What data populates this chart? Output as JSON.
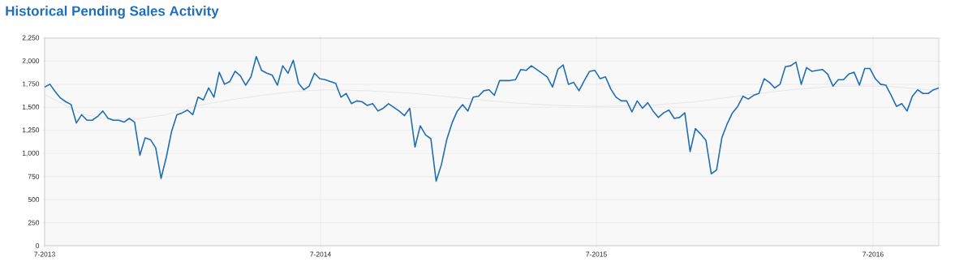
{
  "chart_data": {
    "type": "line",
    "title": "Historical Pending Sales Activity",
    "xlim": [
      "2013-07-01",
      "2016-09-26"
    ],
    "xticks": [
      {
        "value": "2013-07-01",
        "label": "7-2013"
      },
      {
        "value": "2014-07-01",
        "label": "7-2014"
      },
      {
        "value": "2015-07-01",
        "label": "7-2015"
      },
      {
        "value": "2016-07-01",
        "label": "7-2016"
      }
    ],
    "ylim": [
      0,
      2250
    ],
    "yticks": [
      {
        "value": 0,
        "label": "0"
      },
      {
        "value": 250,
        "label": "250"
      },
      {
        "value": 500,
        "label": "500"
      },
      {
        "value": 750,
        "label": "750"
      },
      {
        "value": 1000,
        "label": "1,000"
      },
      {
        "value": 1250,
        "label": "1,250"
      },
      {
        "value": 1500,
        "label": "1,500"
      },
      {
        "value": 1750,
        "label": "1,750"
      },
      {
        "value": 2000,
        "label": "2,000"
      },
      {
        "value": 2250,
        "label": "2,250"
      }
    ],
    "grid": true,
    "series": [
      {
        "color": "#d4d4d4",
        "x": [
          "2013-07-01",
          "2013-08-19",
          "2013-09-16",
          "2013-10-28",
          "2013-12-09",
          "2014-01-20",
          "2014-03-03",
          "2014-04-14",
          "2014-05-26",
          "2014-07-07",
          "2014-09-01",
          "2014-11-03",
          "2015-01-05",
          "2015-03-09",
          "2015-05-11",
          "2015-07-06",
          "2015-09-07",
          "2015-11-09",
          "2016-01-11",
          "2016-03-14",
          "2016-05-16",
          "2016-07-18",
          "2016-09-26"
        ],
        "values": [
          1640,
          1430,
          1380,
          1370,
          1420,
          1520,
          1580,
          1630,
          1670,
          1690,
          1680,
          1650,
          1600,
          1550,
          1520,
          1510,
          1520,
          1560,
          1630,
          1690,
          1730,
          1730,
          1680
        ]
      },
      {
        "color": "#1f6db5",
        "x": [
          "2013-07-01",
          "2013-07-08",
          "2013-07-15",
          "2013-07-22",
          "2013-07-29",
          "2013-08-05",
          "2013-08-12",
          "2013-08-19",
          "2013-08-26",
          "2013-09-02",
          "2013-09-09",
          "2013-09-16",
          "2013-09-23",
          "2013-09-30",
          "2013-10-07",
          "2013-10-14",
          "2013-10-21",
          "2013-10-28",
          "2013-11-04",
          "2013-11-11",
          "2013-11-18",
          "2013-11-25",
          "2013-12-02",
          "2013-12-09",
          "2013-12-16",
          "2013-12-23",
          "2013-12-30",
          "2014-01-06",
          "2014-01-13",
          "2014-01-20",
          "2014-01-27",
          "2014-02-03",
          "2014-02-10",
          "2014-02-17",
          "2014-02-24",
          "2014-03-03",
          "2014-03-10",
          "2014-03-17",
          "2014-03-24",
          "2014-03-31",
          "2014-04-07",
          "2014-04-14",
          "2014-04-21",
          "2014-04-28",
          "2014-05-05",
          "2014-05-12",
          "2014-05-19",
          "2014-05-26",
          "2014-06-02",
          "2014-06-09",
          "2014-06-16",
          "2014-06-23",
          "2014-06-30",
          "2014-07-07",
          "2014-07-14",
          "2014-07-21",
          "2014-07-28",
          "2014-08-04",
          "2014-08-11",
          "2014-08-18",
          "2014-08-25",
          "2014-09-01",
          "2014-09-08",
          "2014-09-15",
          "2014-09-22",
          "2014-09-29",
          "2014-10-06",
          "2014-10-13",
          "2014-10-20",
          "2014-10-27",
          "2014-11-03",
          "2014-11-10",
          "2014-11-17",
          "2014-11-24",
          "2014-12-01",
          "2014-12-08",
          "2014-12-15",
          "2014-12-22",
          "2014-12-29",
          "2015-01-05",
          "2015-01-12",
          "2015-01-19",
          "2015-01-26",
          "2015-02-02",
          "2015-02-09",
          "2015-02-16",
          "2015-02-23",
          "2015-03-02",
          "2015-03-09",
          "2015-03-16",
          "2015-03-23",
          "2015-03-30",
          "2015-04-06",
          "2015-04-13",
          "2015-04-20",
          "2015-04-27",
          "2015-05-04",
          "2015-05-11",
          "2015-05-18",
          "2015-05-25",
          "2015-06-01",
          "2015-06-08",
          "2015-06-15",
          "2015-06-22",
          "2015-06-29",
          "2015-07-06",
          "2015-07-13",
          "2015-07-20",
          "2015-07-27",
          "2015-08-03",
          "2015-08-10",
          "2015-08-17",
          "2015-08-24",
          "2015-08-31",
          "2015-09-07",
          "2015-09-14",
          "2015-09-21",
          "2015-09-28",
          "2015-10-05",
          "2015-10-12",
          "2015-10-19",
          "2015-10-26",
          "2015-11-02",
          "2015-11-09",
          "2015-11-16",
          "2015-11-23",
          "2015-11-30",
          "2015-12-07",
          "2015-12-14",
          "2015-12-21",
          "2015-12-28",
          "2016-01-04",
          "2016-01-11",
          "2016-01-18",
          "2016-01-25",
          "2016-02-01",
          "2016-02-08",
          "2016-02-15",
          "2016-02-22",
          "2016-02-29",
          "2016-03-07",
          "2016-03-14",
          "2016-03-21",
          "2016-03-28",
          "2016-04-04",
          "2016-04-11",
          "2016-04-18",
          "2016-04-25",
          "2016-05-02",
          "2016-05-09",
          "2016-05-16",
          "2016-05-23",
          "2016-05-30",
          "2016-06-06",
          "2016-06-13",
          "2016-06-20",
          "2016-06-27",
          "2016-07-04",
          "2016-07-11",
          "2016-07-18",
          "2016-07-25",
          "2016-08-01",
          "2016-08-08",
          "2016-08-15",
          "2016-08-22",
          "2016-08-29",
          "2016-09-05",
          "2016-09-12",
          "2016-09-19",
          "2016-09-26"
        ],
        "values": [
          1720,
          1750,
          1670,
          1600,
          1560,
          1530,
          1330,
          1420,
          1360,
          1360,
          1400,
          1460,
          1380,
          1360,
          1360,
          1340,
          1380,
          1340,
          980,
          1170,
          1150,
          1060,
          730,
          960,
          1240,
          1420,
          1440,
          1470,
          1420,
          1610,
          1580,
          1710,
          1610,
          1880,
          1750,
          1780,
          1890,
          1840,
          1740,
          1830,
          2050,
          1900,
          1870,
          1850,
          1740,
          1950,
          1870,
          2010,
          1760,
          1690,
          1730,
          1870,
          1810,
          1800,
          1780,
          1760,
          1610,
          1650,
          1540,
          1570,
          1560,
          1520,
          1540,
          1460,
          1490,
          1540,
          1500,
          1460,
          1410,
          1490,
          1070,
          1300,
          1200,
          1160,
          700,
          880,
          1150,
          1330,
          1460,
          1530,
          1460,
          1610,
          1620,
          1680,
          1690,
          1630,
          1790,
          1790,
          1790,
          1800,
          1910,
          1900,
          1950,
          1910,
          1870,
          1830,
          1720,
          1910,
          1960,
          1750,
          1770,
          1680,
          1790,
          1890,
          1900,
          1810,
          1830,
          1700,
          1610,
          1570,
          1570,
          1450,
          1570,
          1490,
          1550,
          1460,
          1390,
          1440,
          1470,
          1380,
          1390,
          1440,
          1020,
          1270,
          1210,
          1140,
          780,
          820,
          1170,
          1320,
          1440,
          1510,
          1620,
          1590,
          1630,
          1650,
          1810,
          1770,
          1710,
          1750,
          1940,
          1950,
          1990,
          1750,
          1930,
          1890,
          1900,
          1910,
          1860,
          1730,
          1800,
          1800,
          1860,
          1880,
          1740,
          1920,
          1920,
          1810,
          1750,
          1740,
          1630,
          1510,
          1540,
          1460,
          1620,
          1690,
          1650,
          1650,
          1690,
          1710
        ]
      }
    ]
  }
}
